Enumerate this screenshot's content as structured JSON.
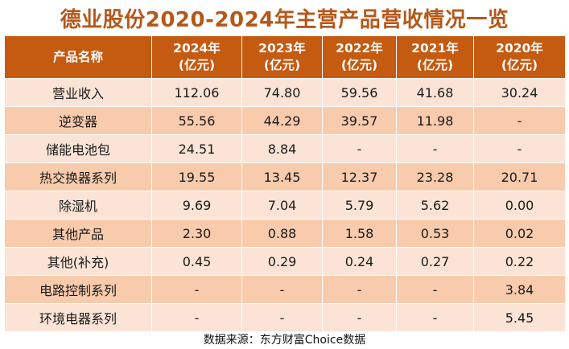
{
  "title": "德业股份2020-2024年主营产品营收情况一览",
  "header": {
    "category_label": "产品名称",
    "years": [
      {
        "year": "2024年",
        "unit": "(亿元)"
      },
      {
        "year": "2023年",
        "unit": "(亿元)"
      },
      {
        "year": "2022年",
        "unit": "(亿元)"
      },
      {
        "year": "2021年",
        "unit": "(亿元)"
      },
      {
        "year": "2020年",
        "unit": "(亿元)"
      }
    ]
  },
  "rows": [
    {
      "name": "营业收入",
      "values": [
        "112.06",
        "74.80",
        "59.56",
        "41.68",
        "30.24"
      ]
    },
    {
      "name": "逆变器",
      "values": [
        "55.56",
        "44.29",
        "39.57",
        "11.98",
        "-"
      ]
    },
    {
      "name": "储能电池包",
      "values": [
        "24.51",
        "8.84",
        "-",
        "-",
        "-"
      ]
    },
    {
      "name": "热交换器系列",
      "values": [
        "19.55",
        "13.45",
        "12.37",
        "23.28",
        "20.71"
      ]
    },
    {
      "name": "除湿机",
      "values": [
        "9.69",
        "7.04",
        "5.79",
        "5.62",
        "0.00"
      ]
    },
    {
      "name": "其他产品",
      "values": [
        "2.30",
        "0.88",
        "1.58",
        "0.53",
        "0.02"
      ]
    },
    {
      "name": "其他(补充)",
      "values": [
        "0.45",
        "0.29",
        "0.24",
        "0.27",
        "0.22"
      ]
    },
    {
      "name": "电路控制系列",
      "values": [
        "-",
        "-",
        "-",
        "-",
        "3.84"
      ]
    },
    {
      "name": "环境电器系列",
      "values": [
        "-",
        "-",
        "-",
        "-",
        "5.45"
      ]
    }
  ],
  "footer": "数据来源：东方财富Choice数据",
  "colors": {
    "title": "#b5581a",
    "header_bg": "#c55a11",
    "row_light": "#fbe4d5",
    "row_dark": "#f8cbad"
  },
  "chart_data": {
    "type": "table",
    "title": "德业股份2020-2024年主营产品营收情况一览",
    "columns": [
      "产品名称",
      "2024年(亿元)",
      "2023年(亿元)",
      "2022年(亿元)",
      "2021年(亿元)",
      "2020年(亿元)"
    ],
    "categories": [
      "营业收入",
      "逆变器",
      "储能电池包",
      "热交换器系列",
      "除湿机",
      "其他产品",
      "其他(补充)",
      "电路控制系列",
      "环境电器系列"
    ],
    "series": [
      {
        "name": "2024年",
        "values": [
          112.06,
          55.56,
          24.51,
          19.55,
          9.69,
          2.3,
          0.45,
          null,
          null
        ]
      },
      {
        "name": "2023年",
        "values": [
          74.8,
          44.29,
          8.84,
          13.45,
          7.04,
          0.88,
          0.29,
          null,
          null
        ]
      },
      {
        "name": "2022年",
        "values": [
          59.56,
          39.57,
          null,
          12.37,
          5.79,
          1.58,
          0.24,
          null,
          null
        ]
      },
      {
        "name": "2021年",
        "values": [
          41.68,
          11.98,
          null,
          23.28,
          5.62,
          0.53,
          0.27,
          null,
          null
        ]
      },
      {
        "name": "2020年",
        "values": [
          30.24,
          null,
          null,
          20.71,
          0.0,
          0.02,
          0.22,
          3.84,
          5.45
        ]
      }
    ]
  }
}
